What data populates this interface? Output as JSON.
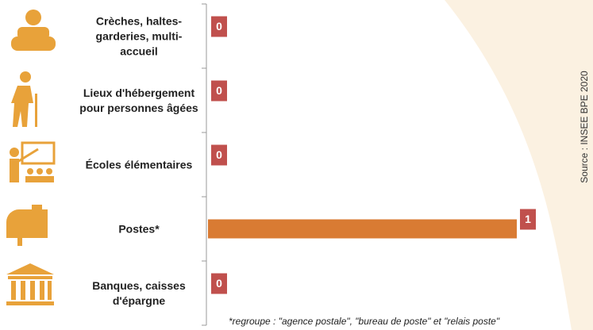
{
  "chart_data": {
    "type": "bar",
    "orientation": "horizontal",
    "categories": [
      "Crèches, haltes-garderies, multi-accueil",
      "Lieux d'hébergement pour personnes âgées",
      "Écoles élémentaires",
      "Postes*",
      "Banques, caisses d'épargne"
    ],
    "values": [
      0,
      0,
      0,
      1,
      0
    ],
    "xlim": [
      0,
      1
    ],
    "color": "#d97b33",
    "label_color": "#c0504d",
    "footnote": "*regroupe : \"agence postale\", \"bureau de poste\" et \"relais poste\"",
    "source": "Source : INSEE BPE 2020"
  }
}
